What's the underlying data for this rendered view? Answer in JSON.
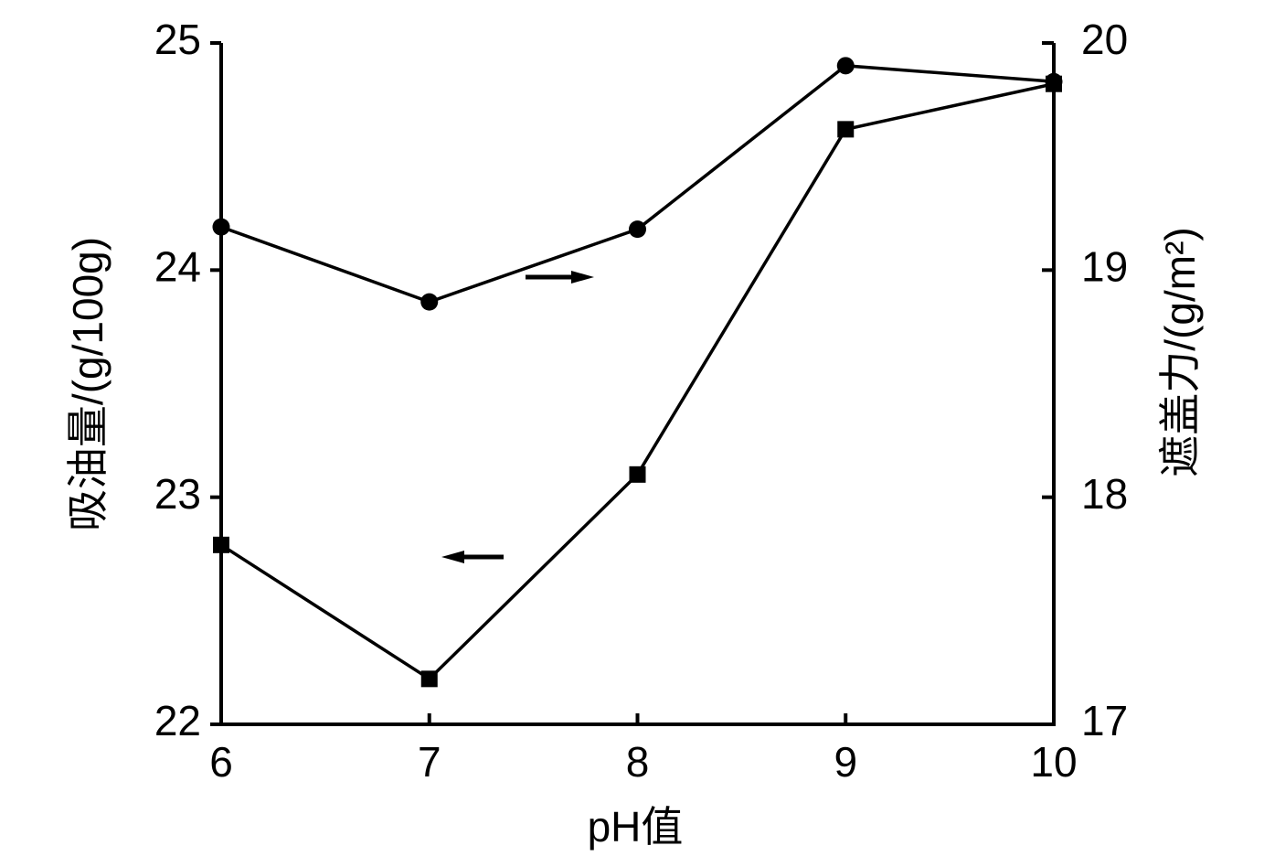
{
  "chart_data": {
    "type": "line",
    "x_label": "pH值",
    "y_label": "吸油量/(g/100g)",
    "y2_label": "遮盖力/(g/m²)",
    "xlim": [
      6,
      10
    ],
    "xticks": [
      6,
      7,
      8,
      9,
      10
    ],
    "ylim": [
      22,
      25
    ],
    "yticks": [
      22,
      23,
      24,
      25
    ],
    "y2lim": [
      17,
      20
    ],
    "y2ticks": [
      17,
      18,
      19,
      20
    ],
    "x": [
      6,
      7,
      8,
      9,
      10
    ],
    "series": [
      {
        "color": "#000000",
        "marker": "square",
        "values": [
          22.79,
          22.2,
          23.1,
          24.62,
          24.82
        ]
      },
      {
        "color": "#000000",
        "marker": "circle",
        "axis": "y2",
        "values": [
          19.19,
          18.86,
          19.18,
          19.9,
          19.83
        ]
      }
    ]
  }
}
